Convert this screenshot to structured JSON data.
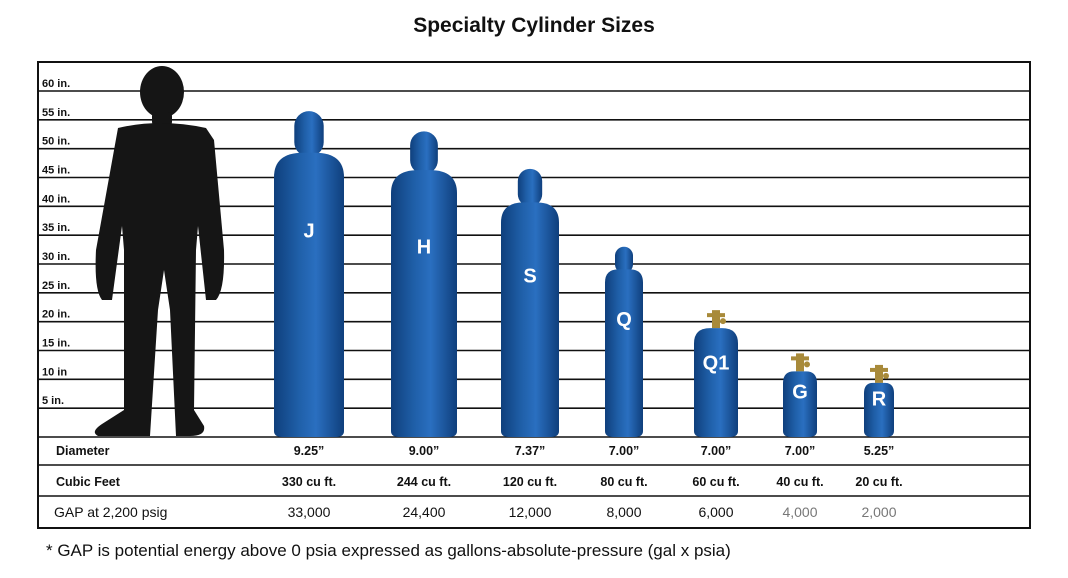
{
  "title": "Specialty Cylinder Sizes",
  "height_scale": {
    "labels": [
      "60 in.",
      "55 in.",
      "50 in.",
      "45 in.",
      "40 in.",
      "35 in.",
      "30 in.",
      "25 in.",
      "20 in.",
      "15 in.",
      "10 in",
      "5 in."
    ],
    "values": [
      60,
      55,
      50,
      45,
      40,
      35,
      30,
      25,
      20,
      15,
      10,
      5
    ]
  },
  "colors": {
    "cylinder": "#1f5fa8",
    "cylinder_dark": "#0f3f7c",
    "valve": "#a88a3a",
    "silhouette": "#151515"
  },
  "cylinders": [
    {
      "label": "J",
      "height_in": 56.5,
      "valve": "cap",
      "diameter": "9.25”",
      "cubic_feet": "330 cu ft.",
      "gap": "33,000"
    },
    {
      "label": "H",
      "height_in": 53,
      "valve": "cap",
      "diameter": "9.00”",
      "cubic_feet": "244 cu ft.",
      "gap": "24,400"
    },
    {
      "label": "S",
      "height_in": 46.5,
      "valve": "cap",
      "diameter": "7.37”",
      "cubic_feet": "120 cu ft.",
      "gap": "12,000"
    },
    {
      "label": "Q",
      "height_in": 33,
      "valve": "cap",
      "diameter": "7.00”",
      "cubic_feet": "80 cu ft.",
      "gap": "8,000"
    },
    {
      "label": "Q1",
      "height_in": 22,
      "valve": "brass",
      "diameter": "7.00”",
      "cubic_feet": "60 cu ft.",
      "gap": "6,000"
    },
    {
      "label": "G",
      "height_in": 14.5,
      "valve": "brass",
      "diameter": "7.00”",
      "cubic_feet": "40 cu ft.",
      "gap": "4,000"
    },
    {
      "label": "R",
      "height_in": 12.5,
      "valve": "brass",
      "diameter": "5.25”",
      "cubic_feet": "20 cu ft.",
      "gap": "2,000"
    }
  ],
  "rows": {
    "diameter": "Diameter",
    "cubic_feet": "Cubic Feet",
    "gap": "GAP at 2,200 psig"
  },
  "footnote": "* GAP is potential energy above 0 psia expressed as gallons-absolute-pressure (gal x psia)"
}
